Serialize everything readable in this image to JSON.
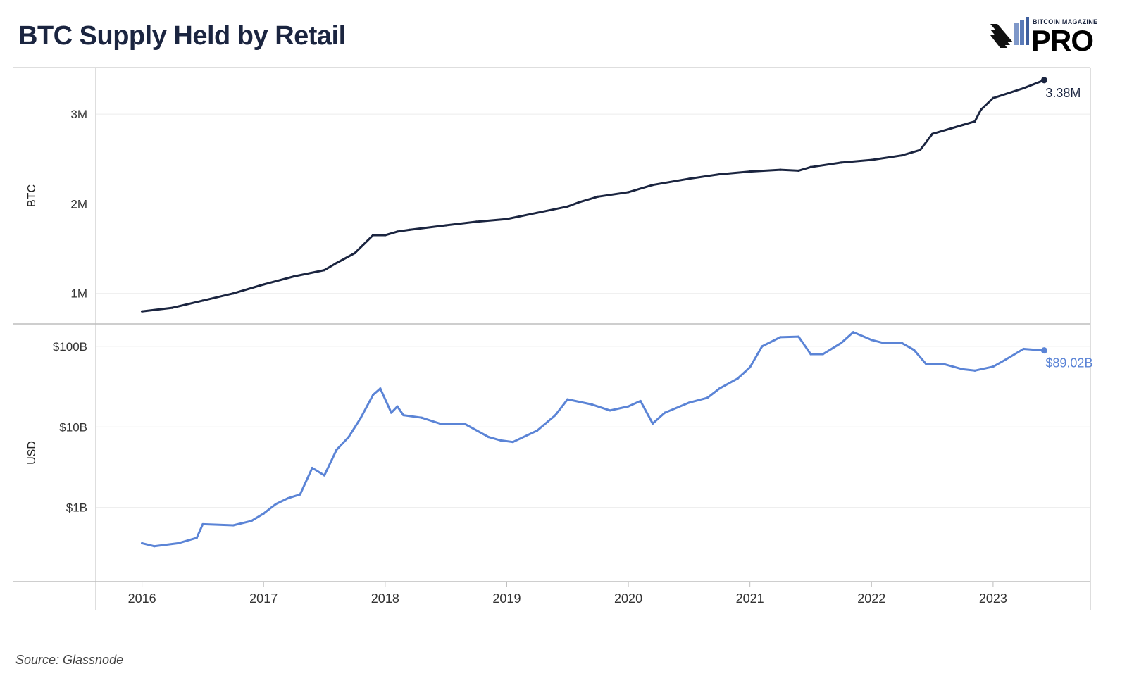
{
  "header": {
    "title": "BTC Supply Held by Retail",
    "logo_small": "BITCOIN MAGAZINE",
    "logo_big": "PRO"
  },
  "footer": {
    "source": "Source: Glassnode"
  },
  "colors": {
    "btc_line": "#1b2540",
    "usd_line": "#5b84d6",
    "grid": "#ececec",
    "axis": "#bdbdbd"
  },
  "chart_data": [
    {
      "type": "line",
      "ylabel": "BTC",
      "scale": "linear",
      "ylim": [
        660000,
        3520000
      ],
      "yticks": [
        1000000,
        2000000,
        3000000
      ],
      "ytick_labels": [
        "1M",
        "2M",
        "3M"
      ],
      "end_label": "3.38M",
      "series": [
        {
          "x": [
            2016.0,
            2016.25,
            2016.5,
            2016.75,
            2017.0,
            2017.25,
            2017.5,
            2017.6,
            2017.75,
            2017.9,
            2018.0,
            2018.1,
            2018.2,
            2018.5,
            2018.75,
            2019.0,
            2019.25,
            2019.5,
            2019.6,
            2019.75,
            2020.0,
            2020.2,
            2020.5,
            2020.75,
            2021.0,
            2021.25,
            2021.4,
            2021.5,
            2021.75,
            2022.0,
            2022.25,
            2022.4,
            2022.5,
            2022.75,
            2022.85,
            2022.9,
            2023.0,
            2023.25,
            2023.42
          ],
          "y": [
            800000,
            840000,
            920000,
            1000000,
            1100000,
            1190000,
            1260000,
            1340000,
            1450000,
            1650000,
            1650000,
            1690000,
            1710000,
            1760000,
            1800000,
            1830000,
            1900000,
            1970000,
            2020000,
            2080000,
            2130000,
            2210000,
            2280000,
            2330000,
            2360000,
            2380000,
            2370000,
            2410000,
            2460000,
            2490000,
            2540000,
            2600000,
            2780000,
            2880000,
            2920000,
            3050000,
            3180000,
            3290000,
            3380000
          ]
        }
      ]
    },
    {
      "type": "line",
      "ylabel": "USD",
      "scale": "log",
      "ylim": [
        0.12,
        190
      ],
      "yticks": [
        1,
        10,
        100
      ],
      "ytick_labels": [
        "$1B",
        "$10B",
        "$100B"
      ],
      "end_label": "$89.02B",
      "series": [
        {
          "x": [
            2016.0,
            2016.1,
            2016.3,
            2016.45,
            2016.5,
            2016.75,
            2016.9,
            2017.0,
            2017.1,
            2017.2,
            2017.3,
            2017.4,
            2017.5,
            2017.6,
            2017.7,
            2017.8,
            2017.9,
            2017.96,
            2018.05,
            2018.1,
            2018.15,
            2018.3,
            2018.45,
            2018.5,
            2018.65,
            2018.85,
            2018.95,
            2019.05,
            2019.25,
            2019.4,
            2019.5,
            2019.7,
            2019.85,
            2020.0,
            2020.1,
            2020.2,
            2020.3,
            2020.5,
            2020.65,
            2020.75,
            2020.9,
            2021.0,
            2021.1,
            2021.25,
            2021.4,
            2021.5,
            2021.6,
            2021.75,
            2021.85,
            2022.0,
            2022.1,
            2022.25,
            2022.35,
            2022.45,
            2022.6,
            2022.75,
            2022.85,
            2023.0,
            2023.1,
            2023.25,
            2023.42
          ],
          "y": [
            0.36,
            0.33,
            0.36,
            0.42,
            0.62,
            0.6,
            0.68,
            0.84,
            1.1,
            1.3,
            1.45,
            3.1,
            2.5,
            5.2,
            7.5,
            13,
            25,
            30,
            15,
            18,
            14,
            13,
            11,
            11,
            11,
            7.5,
            6.8,
            6.5,
            9,
            14,
            22,
            19,
            16,
            18,
            21,
            11,
            15,
            20,
            23,
            30,
            40,
            55,
            100,
            130,
            132,
            80,
            80,
            110,
            150,
            120,
            110,
            110,
            90,
            60,
            60,
            52,
            50,
            56,
            68,
            93,
            89.02
          ]
        }
      ]
    }
  ],
  "x_axis": {
    "range": [
      2015.62,
      2023.8
    ],
    "ticks": [
      2016,
      2017,
      2018,
      2019,
      2020,
      2021,
      2022,
      2023
    ],
    "tick_labels": [
      "2016",
      "2017",
      "2018",
      "2019",
      "2020",
      "2021",
      "2022",
      "2023"
    ]
  }
}
